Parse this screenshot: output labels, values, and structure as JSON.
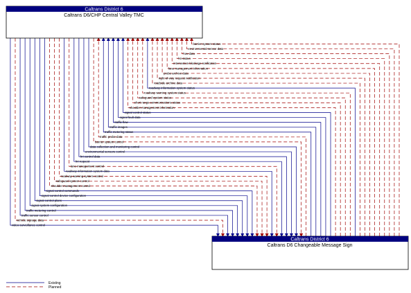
{
  "nodes": {
    "tmc": {
      "owner": "Caltrans District 6",
      "name": "Caltrans D6/CHP Central Valley TMC"
    },
    "sign": {
      "owner": "Caltrans District 6",
      "name": "Caltrans D6 Changeable Message Sign"
    }
  },
  "colors": {
    "existing": "#00008b",
    "planned": "#a00000",
    "header": "#00007f"
  },
  "flows": [
    {
      "label": "barrier system status",
      "status": "planned",
      "dir": "up"
    },
    {
      "label": "environmental sensor data",
      "status": "planned",
      "dir": "up"
    },
    {
      "label": "hov data",
      "status": "planned",
      "dir": "up"
    },
    {
      "label": "hri status",
      "status": "planned",
      "dir": "up"
    },
    {
      "label": "intersection blockage notification",
      "status": "planned",
      "dir": "up"
    },
    {
      "label": "lane management information",
      "status": "planned",
      "dir": "up"
    },
    {
      "label": "probe archive data",
      "status": "planned",
      "dir": "up"
    },
    {
      "label": "right-of-way request notification",
      "status": "planned",
      "dir": "up"
    },
    {
      "label": "roadside archive data",
      "status": "planned",
      "dir": "up"
    },
    {
      "label": "roadway information system status",
      "status": "existing",
      "dir": "up"
    },
    {
      "label": "roadway warning system status",
      "status": "planned",
      "dir": "up"
    },
    {
      "label": "safeguard system status",
      "status": "planned",
      "dir": "up"
    },
    {
      "label": "short range communications status",
      "status": "planned",
      "dir": "up"
    },
    {
      "label": "shoulder management information",
      "status": "planned",
      "dir": "up"
    },
    {
      "label": "signal control status",
      "status": "existing",
      "dir": "up"
    },
    {
      "label": "signal fault data",
      "status": "existing",
      "dir": "up"
    },
    {
      "label": "traffic flow",
      "status": "existing",
      "dir": "up"
    },
    {
      "label": "traffic images",
      "status": "existing",
      "dir": "up"
    },
    {
      "label": "traffic metering status",
      "status": "existing",
      "dir": "up"
    },
    {
      "label": "traffic probe data",
      "status": "planned",
      "dir": "up"
    },
    {
      "label": "barrier system control",
      "status": "planned",
      "dir": "down"
    },
    {
      "label": "data collection and monitoring control",
      "status": "existing",
      "dir": "down"
    },
    {
      "label": "environmental sensors control",
      "status": "existing",
      "dir": "down"
    },
    {
      "label": "hri control data",
      "status": "existing",
      "dir": "down"
    },
    {
      "label": "hri request",
      "status": "existing",
      "dir": "down"
    },
    {
      "label": "lane management control",
      "status": "planned",
      "dir": "down"
    },
    {
      "label": "roadway information system data",
      "status": "existing",
      "dir": "down"
    },
    {
      "label": "roadway warning system control",
      "status": "planned",
      "dir": "down"
    },
    {
      "label": "safeguard system control",
      "status": "planned",
      "dir": "down"
    },
    {
      "label": "shoulder management control",
      "status": "planned",
      "dir": "down"
    },
    {
      "label": "signal control commands",
      "status": "existing",
      "dir": "down"
    },
    {
      "label": "signal control device configuration",
      "status": "existing",
      "dir": "down"
    },
    {
      "label": "signal control plans",
      "status": "existing",
      "dir": "down"
    },
    {
      "label": "signal system configuration",
      "status": "existing",
      "dir": "down"
    },
    {
      "label": "traffic metering control",
      "status": "existing",
      "dir": "down"
    },
    {
      "label": "traffic sensor control",
      "status": "existing",
      "dir": "down"
    },
    {
      "label": "vehicle signage data",
      "status": "planned",
      "dir": "down"
    },
    {
      "label": "video surveillance control",
      "status": "existing",
      "dir": "down"
    }
  ],
  "legend": [
    {
      "label": "Existing",
      "status": "existing"
    },
    {
      "label": "Planned",
      "status": "planned"
    }
  ]
}
